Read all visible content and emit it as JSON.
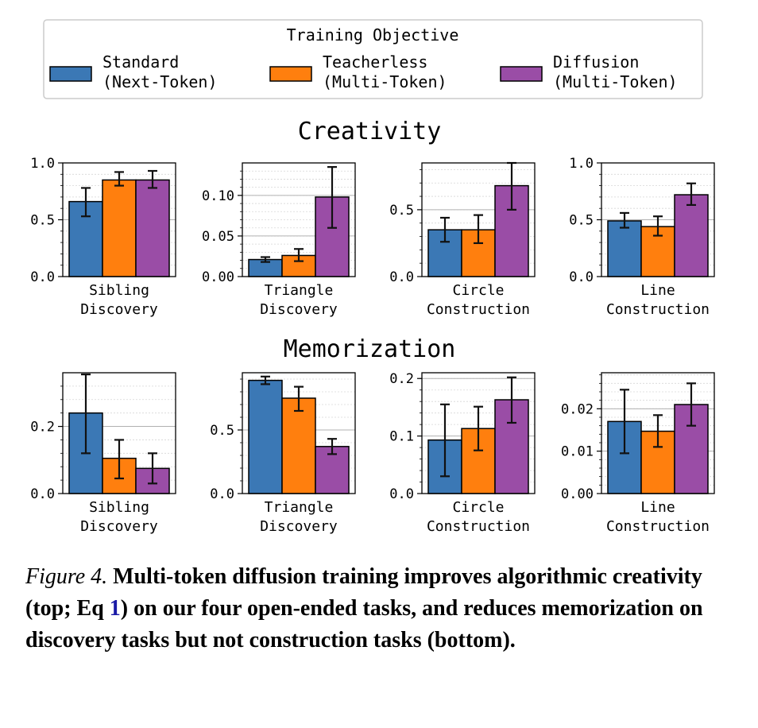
{
  "legend": {
    "title": "Training Objective",
    "entries": [
      {
        "line1": "Standard",
        "line2": "(Next-Token)",
        "color": "#3b78b5"
      },
      {
        "line1": "Teacherless",
        "line2": "(Multi-Token)",
        "color": "#ff7f0e"
      },
      {
        "line1": "Diffusion",
        "line2": "(Multi-Token)",
        "color": "#9a4da6"
      }
    ]
  },
  "rows": [
    {
      "title": "Creativity"
    },
    {
      "title": "Memorization"
    }
  ],
  "chart_data": [
    {
      "type": "bar",
      "row": 0,
      "col": 0,
      "xlabel": [
        "Sibling",
        "Discovery"
      ],
      "ylim": [
        0,
        1.0
      ],
      "ticks": [
        {
          "v": 0,
          "label": "0.0"
        },
        {
          "v": 0.5,
          "label": "0.5"
        },
        {
          "v": 1.0,
          "label": "1.0"
        }
      ],
      "minor": 0.1,
      "series": [
        {
          "name": "Standard",
          "value": 0.66,
          "err": [
            0.53,
            0.78
          ]
        },
        {
          "name": "Teacherless",
          "value": 0.85,
          "err": [
            0.8,
            0.92
          ]
        },
        {
          "name": "Diffusion",
          "value": 0.85,
          "err": [
            0.78,
            0.93
          ]
        }
      ]
    },
    {
      "type": "bar",
      "row": 0,
      "col": 1,
      "xlabel": [
        "Triangle",
        "Discovery"
      ],
      "ylim": [
        0,
        0.14
      ],
      "ticks": [
        {
          "v": 0,
          "label": "0.00"
        },
        {
          "v": 0.05,
          "label": "0.05"
        },
        {
          "v": 0.1,
          "label": "0.10"
        }
      ],
      "minor": 0.01,
      "series": [
        {
          "name": "Standard",
          "value": 0.021,
          "err": [
            0.018,
            0.024
          ]
        },
        {
          "name": "Teacherless",
          "value": 0.026,
          "err": [
            0.019,
            0.034
          ]
        },
        {
          "name": "Diffusion",
          "value": 0.098,
          "err": [
            0.06,
            0.135
          ]
        }
      ]
    },
    {
      "type": "bar",
      "row": 0,
      "col": 2,
      "xlabel": [
        "Circle",
        "Construction"
      ],
      "ylim": [
        0,
        0.85
      ],
      "ticks": [
        {
          "v": 0,
          "label": "0.0"
        },
        {
          "v": 0.5,
          "label": "0.5"
        }
      ],
      "minor": 0.1,
      "series": [
        {
          "name": "Standard",
          "value": 0.35,
          "err": [
            0.26,
            0.44
          ]
        },
        {
          "name": "Teacherless",
          "value": 0.35,
          "err": [
            0.25,
            0.46
          ]
        },
        {
          "name": "Diffusion",
          "value": 0.68,
          "err": [
            0.5,
            0.85
          ]
        }
      ]
    },
    {
      "type": "bar",
      "row": 0,
      "col": 3,
      "xlabel": [
        "Line",
        "Construction"
      ],
      "ylim": [
        0,
        1.0
      ],
      "ticks": [
        {
          "v": 0,
          "label": "0.0"
        },
        {
          "v": 0.5,
          "label": "0.5"
        },
        {
          "v": 1.0,
          "label": "1.0"
        }
      ],
      "minor": 0.1,
      "series": [
        {
          "name": "Standard",
          "value": 0.49,
          "err": [
            0.43,
            0.56
          ]
        },
        {
          "name": "Teacherless",
          "value": 0.44,
          "err": [
            0.36,
            0.53
          ]
        },
        {
          "name": "Diffusion",
          "value": 0.72,
          "err": [
            0.63,
            0.82
          ]
        }
      ]
    },
    {
      "type": "bar",
      "row": 1,
      "col": 0,
      "xlabel": [
        "Sibling",
        "Discovery"
      ],
      "ylim": [
        0,
        0.36
      ],
      "ticks": [
        {
          "v": 0,
          "label": "0.0"
        },
        {
          "v": 0.2,
          "label": "0.2"
        }
      ],
      "minor": 0.04,
      "series": [
        {
          "name": "Standard",
          "value": 0.24,
          "err": [
            0.12,
            0.355
          ]
        },
        {
          "name": "Teacherless",
          "value": 0.105,
          "err": [
            0.045,
            0.16
          ]
        },
        {
          "name": "Diffusion",
          "value": 0.075,
          "err": [
            0.03,
            0.12
          ]
        }
      ]
    },
    {
      "type": "bar",
      "row": 1,
      "col": 1,
      "xlabel": [
        "Triangle",
        "Discovery"
      ],
      "ylim": [
        0,
        0.95
      ],
      "ticks": [
        {
          "v": 0,
          "label": "0.0"
        },
        {
          "v": 0.5,
          "label": "0.5"
        }
      ],
      "minor": 0.1,
      "series": [
        {
          "name": "Standard",
          "value": 0.89,
          "err": [
            0.86,
            0.92
          ]
        },
        {
          "name": "Teacherless",
          "value": 0.75,
          "err": [
            0.65,
            0.84
          ]
        },
        {
          "name": "Diffusion",
          "value": 0.37,
          "err": [
            0.31,
            0.43
          ]
        }
      ]
    },
    {
      "type": "bar",
      "row": 1,
      "col": 2,
      "xlabel": [
        "Circle",
        "Construction"
      ],
      "ylim": [
        0,
        0.21
      ],
      "ticks": [
        {
          "v": 0,
          "label": "0.0"
        },
        {
          "v": 0.1,
          "label": "0.1"
        },
        {
          "v": 0.2,
          "label": "0.2"
        }
      ],
      "minor": 0.02,
      "series": [
        {
          "name": "Standard",
          "value": 0.093,
          "err": [
            0.03,
            0.155
          ]
        },
        {
          "name": "Teacherless",
          "value": 0.113,
          "err": [
            0.075,
            0.151
          ]
        },
        {
          "name": "Diffusion",
          "value": 0.163,
          "err": [
            0.123,
            0.202
          ]
        }
      ]
    },
    {
      "type": "bar",
      "row": 1,
      "col": 3,
      "xlabel": [
        "Line",
        "Construction"
      ],
      "ylim": [
        0,
        0.0285
      ],
      "ticks": [
        {
          "v": 0,
          "label": "0.00"
        },
        {
          "v": 0.01,
          "label": "0.01"
        },
        {
          "v": 0.02,
          "label": "0.02"
        }
      ],
      "minor": 0.002,
      "series": [
        {
          "name": "Standard",
          "value": 0.017,
          "err": [
            0.0095,
            0.0245
          ]
        },
        {
          "name": "Teacherless",
          "value": 0.0147,
          "err": [
            0.011,
            0.0185
          ]
        },
        {
          "name": "Diffusion",
          "value": 0.021,
          "err": [
            0.016,
            0.026
          ]
        }
      ]
    }
  ],
  "caption": {
    "label": "Figure 4.",
    "text_before": "Multi-token diffusion training improves algorithmic creativity (top; Eq ",
    "ref": "1",
    "text_after": ") on our four open-ended tasks, and re­duces memorization on discovery tasks but not construction tasks (bottom)."
  }
}
